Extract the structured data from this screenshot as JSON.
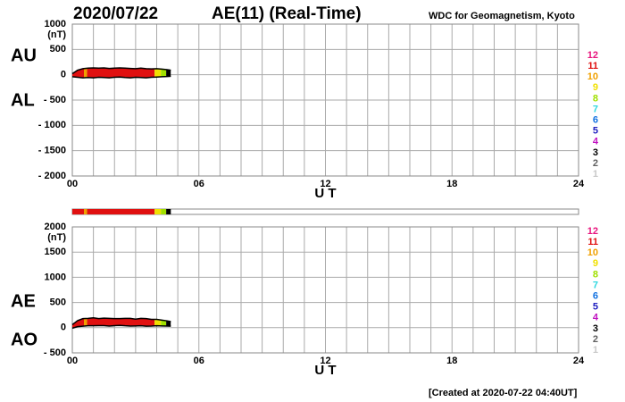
{
  "header": {
    "date": "2020/07/22",
    "title": "AE(11) (Real-Time)",
    "source": "WDC for Geomagnetism, Kyoto"
  },
  "footer": "[Created at 2020-07-22 04:40UT]",
  "activity_levels": {
    "labels": [
      12,
      11,
      10,
      9,
      8,
      7,
      6,
      5,
      4,
      3,
      2,
      1
    ],
    "colors": [
      "#e8157e",
      "#e01010",
      "#f0a000",
      "#f0e000",
      "#a0e000",
      "#30d8e0",
      "#1070e0",
      "#2020c0",
      "#c010c0",
      "#000000",
      "#606060",
      "#c8c8c8"
    ]
  },
  "activity_band": {
    "bins": [
      0,
      0.55,
      0.7,
      3.9,
      4.2,
      4.45,
      4.67
    ],
    "levels": [
      11,
      10,
      11,
      9,
      8,
      3
    ]
  },
  "chart_data": [
    {
      "type": "line",
      "ylabel": "(nT)",
      "xlabel": "U T",
      "x": [
        0,
        0.25,
        0.5,
        0.75,
        1,
        1.25,
        1.5,
        1.75,
        2,
        2.25,
        2.5,
        2.75,
        3,
        3.25,
        3.5,
        3.75,
        4,
        4.25,
        4.5,
        4.67
      ],
      "series": [
        {
          "name": "AU",
          "color": "#000000",
          "values": [
            20,
            90,
            120,
            130,
            135,
            130,
            135,
            125,
            130,
            135,
            130,
            125,
            120,
            130,
            120,
            115,
            120,
            110,
            100,
            90
          ]
        },
        {
          "name": "AL",
          "color": "#000000",
          "values": [
            -40,
            -50,
            -60,
            -55,
            -60,
            -50,
            -55,
            -60,
            -50,
            -45,
            -55,
            -60,
            -50,
            -55,
            -60,
            -50,
            -45,
            -40,
            -35,
            -30
          ]
        }
      ],
      "xlim": [
        0,
        24
      ],
      "xticks": [
        {
          "value": 0,
          "label": "00"
        },
        {
          "value": 6,
          "label": "06"
        },
        12,
        18,
        24
      ],
      "xgrid": [
        1,
        2,
        3,
        4,
        5,
        6,
        7,
        8,
        9,
        10,
        11,
        12,
        13,
        14,
        15,
        16,
        17,
        18,
        19,
        20,
        21,
        22,
        23
      ],
      "ylim": [
        -2000,
        1000
      ],
      "yticks": [
        1000,
        500,
        0,
        {
          "value": -500,
          "label": "- 500"
        },
        {
          "value": -1000,
          "label": "- 1000"
        },
        {
          "value": -1500,
          "label": "- 1500"
        },
        {
          "value": -2000,
          "label": "- 2000"
        }
      ],
      "grid": true
    },
    {
      "type": "line",
      "ylabel": "(nT)",
      "xlabel": "U T",
      "x": [
        0,
        0.25,
        0.5,
        0.75,
        1,
        1.25,
        1.5,
        1.75,
        2,
        2.25,
        2.5,
        2.75,
        3,
        3.25,
        3.5,
        3.75,
        4,
        4.25,
        4.5,
        4.67
      ],
      "series": [
        {
          "name": "AE",
          "color": "#000000",
          "values": [
            60,
            140,
            180,
            185,
            195,
            180,
            190,
            185,
            180,
            180,
            185,
            185,
            170,
            185,
            180,
            165,
            165,
            150,
            135,
            120
          ]
        },
        {
          "name": "AO",
          "color": "#000000",
          "values": [
            -10,
            20,
            30,
            37.5,
            37.5,
            40,
            40,
            32.5,
            40,
            45,
            37.5,
            32.5,
            35,
            37.5,
            30,
            32.5,
            37.5,
            35,
            32.5,
            30
          ]
        }
      ],
      "xlim": [
        0,
        24
      ],
      "xticks": [
        {
          "value": 0,
          "label": "00"
        },
        {
          "value": 6,
          "label": "06"
        },
        12,
        18,
        24
      ],
      "xgrid": [
        1,
        2,
        3,
        4,
        5,
        6,
        7,
        8,
        9,
        10,
        11,
        12,
        13,
        14,
        15,
        16,
        17,
        18,
        19,
        20,
        21,
        22,
        23
      ],
      "ylim": [
        -500,
        2000
      ],
      "yticks": [
        2000,
        1500,
        1000,
        500,
        0,
        {
          "value": -500,
          "label": "- 500"
        }
      ],
      "grid": true
    }
  ]
}
